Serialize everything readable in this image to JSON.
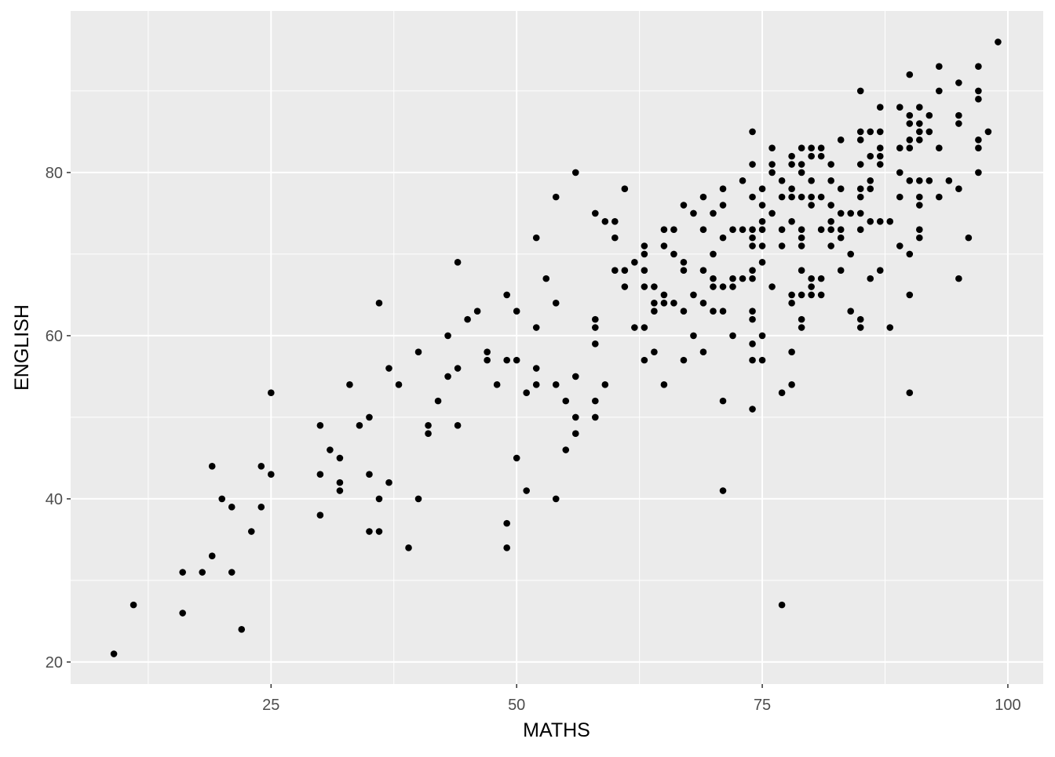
{
  "chart_data": {
    "type": "scatter",
    "title": "",
    "xlabel": "MATHS",
    "ylabel": "ENGLISH",
    "xlim": [
      4.6,
      103.6
    ],
    "ylim": [
      17.3,
      99.8
    ],
    "x_ticks": [
      25,
      50,
      75,
      100
    ],
    "y_ticks": [
      20,
      40,
      60,
      80
    ],
    "x_minor": [
      12.5,
      37.5,
      62.5,
      87.5
    ],
    "y_minor": [
      30,
      50,
      70,
      90
    ],
    "grid": true,
    "panel_background": "#EBEBEB",
    "grid_color": "#FFFFFF",
    "point_color": "#000000",
    "points": [
      [
        9,
        21
      ],
      [
        11,
        27
      ],
      [
        16,
        31
      ],
      [
        16,
        26
      ],
      [
        18,
        31
      ],
      [
        19,
        44
      ],
      [
        19,
        33
      ],
      [
        20,
        40
      ],
      [
        21,
        39
      ],
      [
        21,
        31
      ],
      [
        22,
        24
      ],
      [
        23,
        36
      ],
      [
        24,
        44
      ],
      [
        24,
        39
      ],
      [
        25,
        53
      ],
      [
        25,
        43
      ],
      [
        30,
        49
      ],
      [
        30,
        43
      ],
      [
        30,
        38
      ],
      [
        31,
        46
      ],
      [
        32,
        45
      ],
      [
        32,
        42
      ],
      [
        32,
        41
      ],
      [
        33,
        54
      ],
      [
        34,
        49
      ],
      [
        35,
        50
      ],
      [
        35,
        43
      ],
      [
        35,
        36
      ],
      [
        36,
        64
      ],
      [
        36,
        40
      ],
      [
        36,
        36
      ],
      [
        37,
        56
      ],
      [
        37,
        42
      ],
      [
        38,
        54
      ],
      [
        39,
        34
      ],
      [
        40,
        58
      ],
      [
        40,
        40
      ],
      [
        41,
        49
      ],
      [
        41,
        48
      ],
      [
        42,
        52
      ],
      [
        43,
        60
      ],
      [
        43,
        55
      ],
      [
        44,
        69
      ],
      [
        44,
        56
      ],
      [
        44,
        49
      ],
      [
        45,
        62
      ],
      [
        46,
        63
      ],
      [
        47,
        58
      ],
      [
        47,
        57
      ],
      [
        48,
        54
      ],
      [
        49,
        65
      ],
      [
        49,
        57
      ],
      [
        49,
        37
      ],
      [
        49,
        34
      ],
      [
        50,
        63
      ],
      [
        50,
        57
      ],
      [
        50,
        45
      ],
      [
        51,
        53
      ],
      [
        51,
        41
      ],
      [
        52,
        72
      ],
      [
        52,
        61
      ],
      [
        52,
        56
      ],
      [
        52,
        54
      ],
      [
        53,
        67
      ],
      [
        54,
        77
      ],
      [
        54,
        64
      ],
      [
        54,
        54
      ],
      [
        54,
        40
      ],
      [
        55,
        52
      ],
      [
        55,
        46
      ],
      [
        56,
        80
      ],
      [
        56,
        55
      ],
      [
        56,
        50
      ],
      [
        56,
        48
      ],
      [
        58,
        75
      ],
      [
        58,
        62
      ],
      [
        58,
        61
      ],
      [
        58,
        59
      ],
      [
        58,
        52
      ],
      [
        58,
        50
      ],
      [
        59,
        74
      ],
      [
        59,
        54
      ],
      [
        60,
        74
      ],
      [
        60,
        72
      ],
      [
        60,
        68
      ],
      [
        61,
        78
      ],
      [
        61,
        68
      ],
      [
        61,
        66
      ],
      [
        62,
        69
      ],
      [
        62,
        61
      ],
      [
        63,
        71
      ],
      [
        63,
        70
      ],
      [
        63,
        68
      ],
      [
        63,
        66
      ],
      [
        63,
        61
      ],
      [
        63,
        57
      ],
      [
        64,
        66
      ],
      [
        64,
        64
      ],
      [
        64,
        63
      ],
      [
        64,
        58
      ],
      [
        65,
        73
      ],
      [
        65,
        71
      ],
      [
        65,
        65
      ],
      [
        65,
        64
      ],
      [
        65,
        54
      ],
      [
        66,
        73
      ],
      [
        66,
        70
      ],
      [
        66,
        64
      ],
      [
        67,
        76
      ],
      [
        67,
        69
      ],
      [
        67,
        68
      ],
      [
        67,
        63
      ],
      [
        67,
        57
      ],
      [
        68,
        75
      ],
      [
        68,
        65
      ],
      [
        68,
        60
      ],
      [
        69,
        77
      ],
      [
        69,
        73
      ],
      [
        69,
        68
      ],
      [
        69,
        64
      ],
      [
        69,
        58
      ],
      [
        70,
        75
      ],
      [
        70,
        70
      ],
      [
        70,
        67
      ],
      [
        70,
        66
      ],
      [
        70,
        63
      ],
      [
        71,
        78
      ],
      [
        71,
        76
      ],
      [
        71,
        72
      ],
      [
        71,
        66
      ],
      [
        71,
        63
      ],
      [
        71,
        52
      ],
      [
        71,
        41
      ],
      [
        72,
        73
      ],
      [
        72,
        67
      ],
      [
        72,
        66
      ],
      [
        72,
        60
      ],
      [
        73,
        79
      ],
      [
        73,
        73
      ],
      [
        73,
        67
      ],
      [
        74,
        85
      ],
      [
        74,
        81
      ],
      [
        74,
        77
      ],
      [
        74,
        73
      ],
      [
        74,
        72
      ],
      [
        74,
        71
      ],
      [
        74,
        68
      ],
      [
        74,
        67
      ],
      [
        74,
        63
      ],
      [
        74,
        62
      ],
      [
        74,
        59
      ],
      [
        74,
        57
      ],
      [
        74,
        51
      ],
      [
        75,
        78
      ],
      [
        75,
        76
      ],
      [
        75,
        74
      ],
      [
        75,
        73
      ],
      [
        75,
        71
      ],
      [
        75,
        69
      ],
      [
        75,
        60
      ],
      [
        75,
        57
      ],
      [
        76,
        83
      ],
      [
        76,
        81
      ],
      [
        76,
        80
      ],
      [
        76,
        75
      ],
      [
        76,
        66
      ],
      [
        77,
        79
      ],
      [
        77,
        77
      ],
      [
        77,
        73
      ],
      [
        77,
        71
      ],
      [
        77,
        53
      ],
      [
        77,
        27
      ],
      [
        78,
        82
      ],
      [
        78,
        81
      ],
      [
        78,
        78
      ],
      [
        78,
        77
      ],
      [
        78,
        74
      ],
      [
        78,
        65
      ],
      [
        78,
        64
      ],
      [
        78,
        58
      ],
      [
        78,
        54
      ],
      [
        79,
        83
      ],
      [
        79,
        81
      ],
      [
        79,
        80
      ],
      [
        79,
        77
      ],
      [
        79,
        73
      ],
      [
        79,
        72
      ],
      [
        79,
        71
      ],
      [
        79,
        68
      ],
      [
        79,
        65
      ],
      [
        79,
        62
      ],
      [
        79,
        61
      ],
      [
        80,
        83
      ],
      [
        80,
        82
      ],
      [
        80,
        79
      ],
      [
        80,
        77
      ],
      [
        80,
        76
      ],
      [
        80,
        67
      ],
      [
        80,
        66
      ],
      [
        80,
        65
      ],
      [
        81,
        83
      ],
      [
        81,
        82
      ],
      [
        81,
        77
      ],
      [
        81,
        73
      ],
      [
        81,
        67
      ],
      [
        81,
        65
      ],
      [
        82,
        81
      ],
      [
        82,
        79
      ],
      [
        82,
        76
      ],
      [
        82,
        74
      ],
      [
        82,
        73
      ],
      [
        82,
        71
      ],
      [
        83,
        84
      ],
      [
        83,
        78
      ],
      [
        83,
        75
      ],
      [
        83,
        73
      ],
      [
        83,
        72
      ],
      [
        83,
        68
      ],
      [
        84,
        75
      ],
      [
        84,
        70
      ],
      [
        84,
        63
      ],
      [
        85,
        90
      ],
      [
        85,
        85
      ],
      [
        85,
        84
      ],
      [
        85,
        81
      ],
      [
        85,
        78
      ],
      [
        85,
        77
      ],
      [
        85,
        75
      ],
      [
        85,
        73
      ],
      [
        85,
        62
      ],
      [
        85,
        61
      ],
      [
        86,
        85
      ],
      [
        86,
        82
      ],
      [
        86,
        79
      ],
      [
        86,
        78
      ],
      [
        86,
        74
      ],
      [
        86,
        67
      ],
      [
        87,
        88
      ],
      [
        87,
        85
      ],
      [
        87,
        83
      ],
      [
        87,
        82
      ],
      [
        87,
        81
      ],
      [
        87,
        74
      ],
      [
        87,
        68
      ],
      [
        88,
        74
      ],
      [
        88,
        61
      ],
      [
        89,
        88
      ],
      [
        89,
        83
      ],
      [
        89,
        80
      ],
      [
        89,
        77
      ],
      [
        89,
        71
      ],
      [
        90,
        92
      ],
      [
        90,
        87
      ],
      [
        90,
        86
      ],
      [
        90,
        84
      ],
      [
        90,
        83
      ],
      [
        90,
        79
      ],
      [
        90,
        70
      ],
      [
        90,
        65
      ],
      [
        90,
        53
      ],
      [
        91,
        88
      ],
      [
        91,
        86
      ],
      [
        91,
        85
      ],
      [
        91,
        84
      ],
      [
        91,
        79
      ],
      [
        91,
        77
      ],
      [
        91,
        76
      ],
      [
        91,
        73
      ],
      [
        91,
        72
      ],
      [
        92,
        87
      ],
      [
        92,
        85
      ],
      [
        92,
        79
      ],
      [
        93,
        93
      ],
      [
        93,
        90
      ],
      [
        93,
        83
      ],
      [
        93,
        77
      ],
      [
        94,
        79
      ],
      [
        95,
        91
      ],
      [
        95,
        87
      ],
      [
        95,
        86
      ],
      [
        95,
        78
      ],
      [
        95,
        67
      ],
      [
        96,
        72
      ],
      [
        97,
        93
      ],
      [
        97,
        90
      ],
      [
        97,
        89
      ],
      [
        97,
        84
      ],
      [
        97,
        83
      ],
      [
        97,
        80
      ],
      [
        98,
        85
      ],
      [
        99,
        96
      ]
    ]
  }
}
